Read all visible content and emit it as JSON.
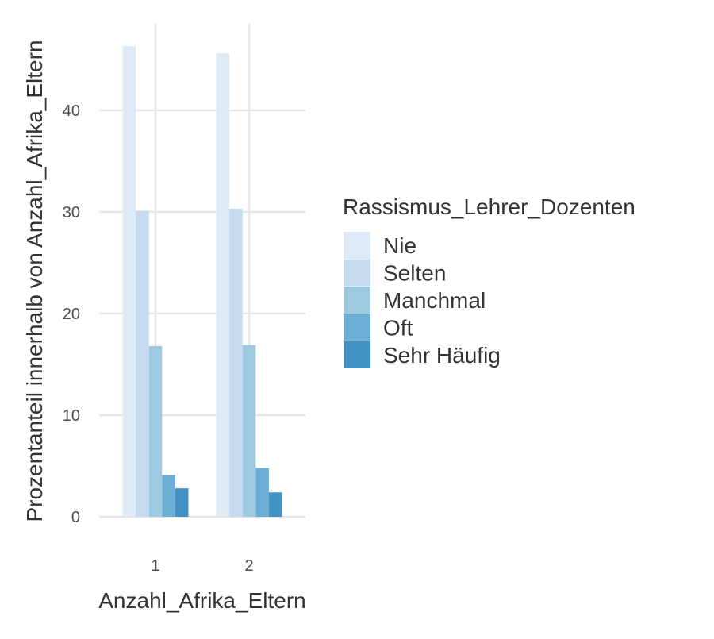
{
  "chart_data": {
    "type": "bar",
    "title": "",
    "xlabel": "Anzahl_Afrika_Eltern",
    "ylabel": "Prozentanteil innerhalb von Anzahl_Afrika_Eltern",
    "categories": [
      "1",
      "2"
    ],
    "ylim": [
      0,
      48.5
    ],
    "yticks": [
      0,
      10,
      20,
      30,
      40
    ],
    "ytick_labels": [
      "0",
      "10",
      "20",
      "30",
      "40"
    ],
    "grid": true,
    "legend_title": "Rassismus_Lehrer_Dozenten",
    "legend_position": "right",
    "series": [
      {
        "name": "Nie",
        "color": "#deebf7",
        "values": [
          46.3,
          45.6
        ]
      },
      {
        "name": "Selten",
        "color": "#c6dbef",
        "values": [
          30.1,
          30.3
        ]
      },
      {
        "name": "Manchmal",
        "color": "#9ecae1",
        "values": [
          16.8,
          16.9
        ]
      },
      {
        "name": "Oft",
        "color": "#6baed6",
        "values": [
          4.1,
          4.8
        ]
      },
      {
        "name": "Sehr Häufig",
        "color": "#4292c6",
        "values": [
          2.8,
          2.4
        ]
      }
    ]
  }
}
